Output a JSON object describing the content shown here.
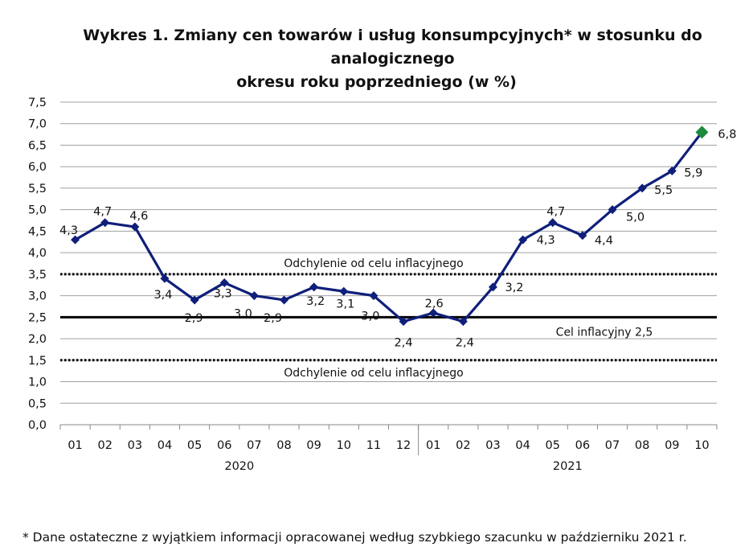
{
  "title_line1": "Wykres 1. Zmiany cen towarów i usług konsumpcyjnych* w stosunku do analogicznego",
  "title_line2": "okresu roku poprzedniego (w %)",
  "footnote": "* Dane ostateczne z wyjątkiem informacji opracowanej według szybkiego szacunku w październiku 2021 r.",
  "chart_data": {
    "type": "line",
    "title": "Wykres 1. Zmiany cen towarów i usług konsumpcyjnych* w stosunku do analogicznego okresu roku poprzedniego (w %)",
    "xlabel": "",
    "ylabel": "",
    "ylim": [
      0,
      7.5
    ],
    "yticks": [
      "0,0",
      "0,5",
      "1,0",
      "1,5",
      "2,0",
      "2,5",
      "3,0",
      "3,5",
      "4,0",
      "4,5",
      "5,0",
      "5,5",
      "6,0",
      "6,5",
      "7,0",
      "7,5"
    ],
    "grid": true,
    "years": [
      {
        "label": "2020",
        "months": [
          "01",
          "02",
          "03",
          "04",
          "05",
          "06",
          "07",
          "08",
          "09",
          "10",
          "11",
          "12"
        ]
      },
      {
        "label": "2021",
        "months": [
          "01",
          "02",
          "03",
          "04",
          "05",
          "06",
          "07",
          "08",
          "09",
          "10"
        ]
      }
    ],
    "categories": [
      "2020-01",
      "2020-02",
      "2020-03",
      "2020-04",
      "2020-05",
      "2020-06",
      "2020-07",
      "2020-08",
      "2020-09",
      "2020-10",
      "2020-11",
      "2020-12",
      "2021-01",
      "2021-02",
      "2021-03",
      "2021-04",
      "2021-05",
      "2021-06",
      "2021-07",
      "2021-08",
      "2021-09",
      "2021-10"
    ],
    "series": [
      {
        "values": [
          4.3,
          4.7,
          4.6,
          3.4,
          2.9,
          3.3,
          3.0,
          2.9,
          3.2,
          3.1,
          3.0,
          2.4,
          2.6,
          2.4,
          3.2,
          4.3,
          4.7,
          4.4,
          5.0,
          5.5,
          5.9,
          6.8
        ],
        "labels": [
          "4,3",
          "4,7",
          "4,6",
          "3,4",
          "2,9",
          "3,3",
          "3,0",
          "2,9",
          "3,2",
          "3,1",
          "3,0",
          "2,4",
          "2,6",
          "2,4",
          "3,2",
          "4,3",
          "4,7",
          "4,4",
          "5,0",
          "5,5",
          "5,9",
          "6,8"
        ],
        "color": "#0f1f7a",
        "last_point_color": "#1e8a3c"
      }
    ],
    "reference_lines": [
      {
        "value": 3.5,
        "style": "dotted",
        "label": "Odchylenie od celu inflacyjnego"
      },
      {
        "value": 2.5,
        "style": "solid",
        "label": "Cel inflacyjny 2,5"
      },
      {
        "value": 1.5,
        "style": "dotted",
        "label": "Odchylenie od celu inflacyjnego"
      }
    ]
  }
}
